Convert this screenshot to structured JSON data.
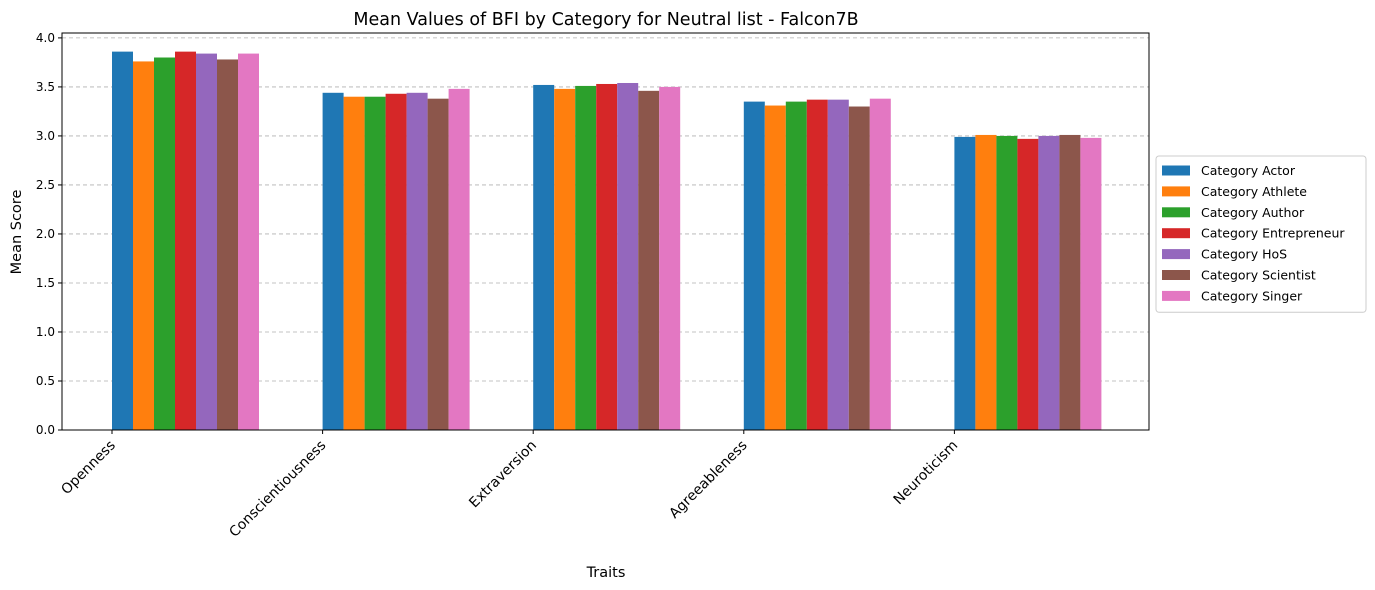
{
  "chart_data": {
    "type": "bar",
    "title": "Mean Values of BFI by Category for Neutral list - Falcon7B",
    "xlabel": "Traits",
    "ylabel": "Mean Score",
    "ylim": [
      0,
      4.05
    ],
    "yticks": [
      "0.0",
      "0.5",
      "1.0",
      "1.5",
      "2.0",
      "2.5",
      "3.0",
      "3.5",
      "4.0"
    ],
    "grid": "y-dashed",
    "legend_position": "right",
    "categories": [
      "Openness",
      "Conscientiousness",
      "Extraversion",
      "Agreeableness",
      "Neuroticism"
    ],
    "series": [
      {
        "name": "Category Actor",
        "color": "#1f77b4",
        "values": [
          3.86,
          3.44,
          3.52,
          3.35,
          2.99
        ]
      },
      {
        "name": "Category Athlete",
        "color": "#ff7f0e",
        "values": [
          3.76,
          3.4,
          3.48,
          3.31,
          3.01
        ]
      },
      {
        "name": "Category Author",
        "color": "#2ca02c",
        "values": [
          3.8,
          3.4,
          3.51,
          3.35,
          3.0
        ]
      },
      {
        "name": "Category Entrepreneur",
        "color": "#d62728",
        "values": [
          3.86,
          3.43,
          3.53,
          3.37,
          2.97
        ]
      },
      {
        "name": "Category HoS",
        "color": "#9467bd",
        "values": [
          3.84,
          3.44,
          3.54,
          3.37,
          3.0
        ]
      },
      {
        "name": "Category Scientist",
        "color": "#8c564b",
        "values": [
          3.78,
          3.38,
          3.46,
          3.3,
          3.01
        ]
      },
      {
        "name": "Category Singer",
        "color": "#e377c2",
        "values": [
          3.84,
          3.48,
          3.5,
          3.38,
          2.98
        ]
      }
    ]
  }
}
